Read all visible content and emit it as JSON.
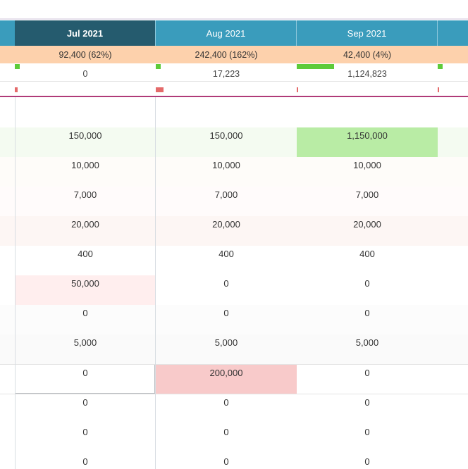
{
  "months": [
    "Jul 2021",
    "Aug 2021",
    "Sep 2021"
  ],
  "active_month_index": 0,
  "summary": [
    "92,400 (62%)",
    "242,400 (162%)",
    "42,400 (4%)"
  ],
  "totals": [
    "0",
    "17,223",
    "1,124,823"
  ],
  "colors": {
    "header": "#3a9cbc",
    "header_active": "#255b6e",
    "summary_bg": "#fdd1ac",
    "positive_bar": "#5ecb3a",
    "negative_bar": "#e46a6a",
    "highlight_green": "#b9eca5",
    "highlight_pink": "#ffeeee",
    "highlight_red": "#f8caca",
    "divider": "#b03a78"
  },
  "rows": [
    {
      "values": [
        "150,000",
        "150,000",
        "1,150,000"
      ]
    },
    {
      "values": [
        "10,000",
        "10,000",
        "10,000"
      ]
    },
    {
      "values": [
        "7,000",
        "7,000",
        "7,000"
      ]
    },
    {
      "values": [
        "20,000",
        "20,000",
        "20,000"
      ]
    },
    {
      "values": [
        "400",
        "400",
        "400"
      ]
    },
    {
      "values": [
        "50,000",
        "0",
        "0"
      ]
    },
    {
      "values": [
        "0",
        "0",
        "0"
      ]
    },
    {
      "values": [
        "5,000",
        "5,000",
        "5,000"
      ]
    },
    {
      "values": [
        "0",
        "200,000",
        "0"
      ]
    },
    {
      "values": [
        "0",
        "0",
        "0"
      ]
    },
    {
      "values": [
        "0",
        "0",
        "0"
      ]
    },
    {
      "values": [
        "0",
        "0",
        "0"
      ]
    }
  ]
}
